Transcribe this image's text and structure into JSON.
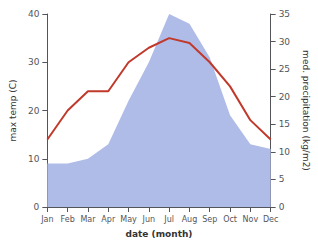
{
  "chart_data": {
    "type": "line",
    "xlabel": "date (month)",
    "ylabel": "max temp (C)",
    "y2label": "med. precipitation (kg/m2)",
    "categories": [
      "Jan",
      "Feb",
      "Mar",
      "Apr",
      "May",
      "Jun",
      "Jul",
      "Aug",
      "Sep",
      "Oct",
      "Nov",
      "Dec"
    ],
    "series": [
      {
        "type": "area",
        "color": "#b0bce8",
        "values": [
          9,
          9,
          10,
          13,
          22,
          30,
          40,
          38,
          31,
          19,
          13,
          12
        ]
      },
      {
        "type": "line",
        "color": "#c0392b",
        "values": [
          14,
          20,
          24,
          24,
          30,
          33,
          35,
          34,
          30,
          25,
          18,
          14
        ]
      }
    ],
    "ylim": [
      0,
      40
    ],
    "yticks": [
      0,
      10,
      20,
      30,
      40
    ],
    "y2lim": [
      0,
      35
    ],
    "y2ticks": [
      0,
      5,
      10,
      15,
      20,
      25,
      30,
      35
    ],
    "grid": false
  }
}
